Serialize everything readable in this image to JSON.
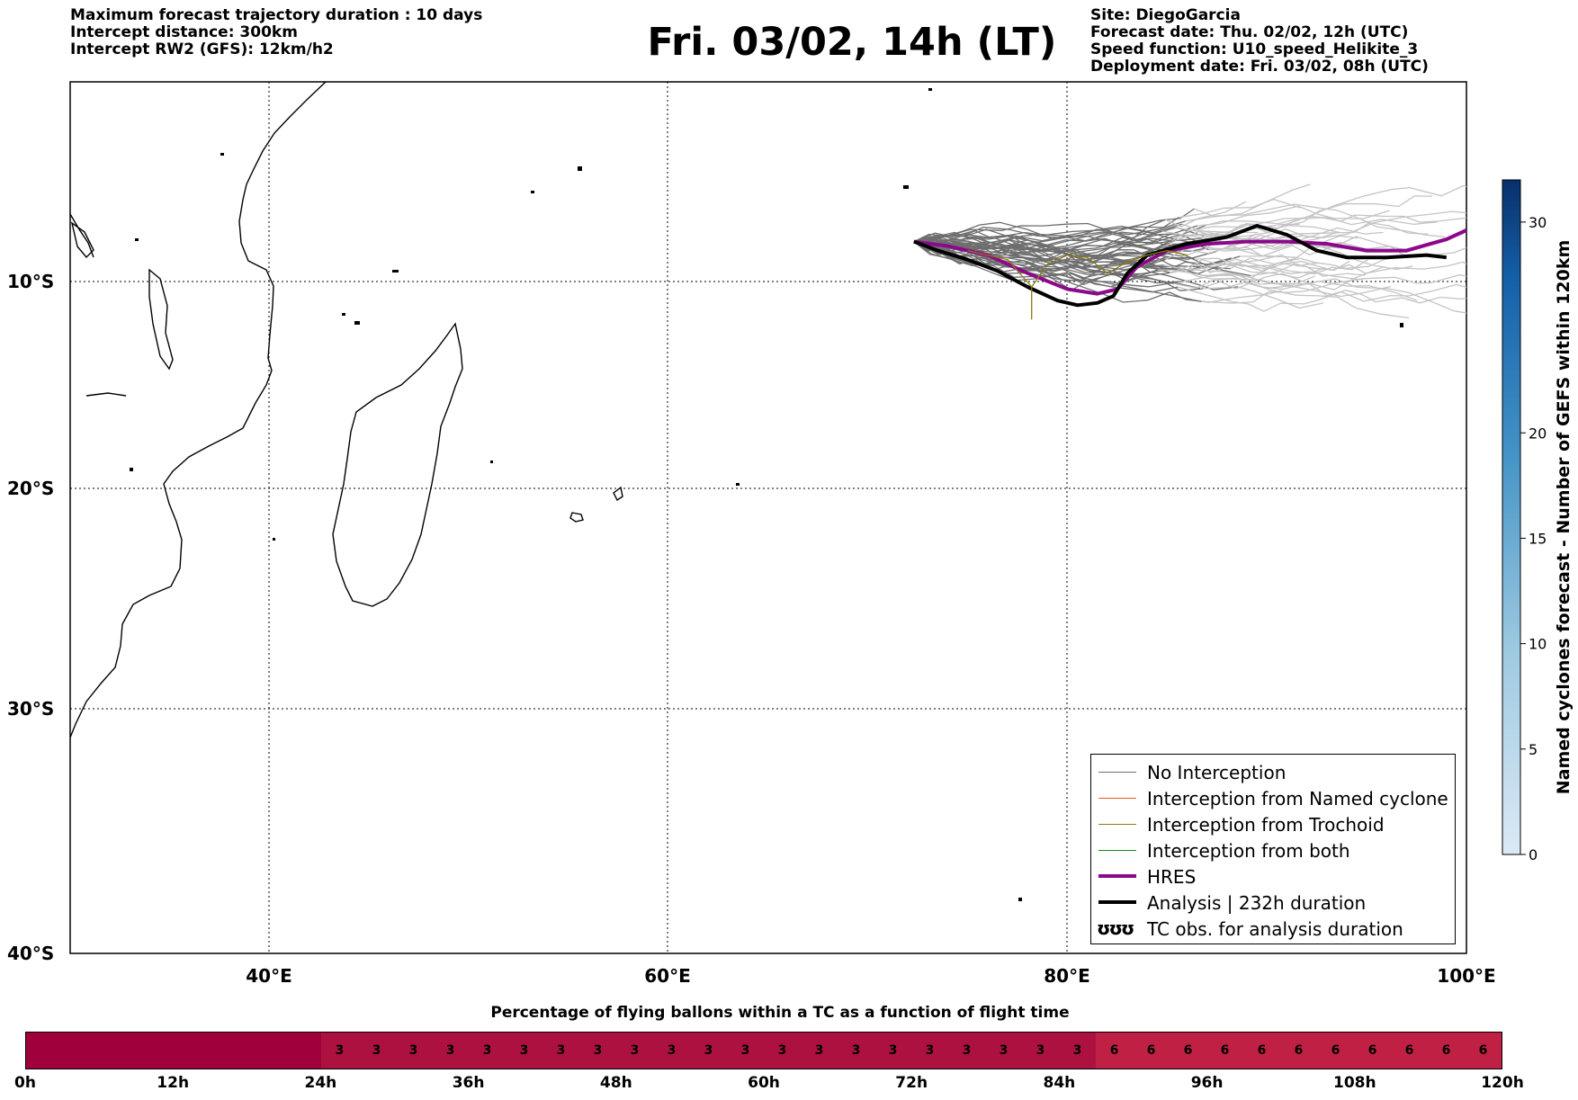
{
  "header": {
    "left_lines": [
      "Maximum forecast trajectory duration : 10 days",
      "Intercept distance: 300km",
      "Intercept RW2 (GFS):  12km/h2"
    ],
    "title": "Fri. 03/02, 14h (LT)",
    "right_lines": [
      "Site: DiegoGarcia",
      "Forecast date: Thu. 02/02, 12h (UTC)",
      "Speed function: U10_speed_Helikite_3",
      "Deployment date: Fri. 03/02, 08h (UTC)"
    ]
  },
  "map": {
    "lon_range": [
      30,
      100
    ],
    "lat_range": [
      -40,
      0
    ],
    "lat_labels": [
      "10°S",
      "20°S",
      "30°S",
      "40°S"
    ],
    "lon_labels": [
      "40°E",
      "60°E",
      "80°E",
      "100°E"
    ],
    "gridlines": "dotted"
  },
  "colorbar": {
    "title": "Named cyclones forecast - Number of GEFS within 120km",
    "ticks": [
      "0",
      "5",
      "10",
      "15",
      "20",
      "30"
    ],
    "tick_values": [
      0,
      5,
      10,
      15,
      20,
      30
    ],
    "range": [
      0,
      32
    ],
    "color_low": "#dbe9f6",
    "color_high": "#08306b"
  },
  "legend": {
    "items": [
      {
        "label": "No Interception",
        "color": "#707070",
        "style": "thin"
      },
      {
        "label": "Interception from Named cyclone",
        "color": "#e8591d",
        "style": "thin"
      },
      {
        "label": "Interception from Trochoid",
        "color": "#8a7a10",
        "style": "thin"
      },
      {
        "label": "Interception from both",
        "color": "#1a8a1a",
        "style": "thin"
      },
      {
        "label": "HRES",
        "color": "#8b0a8b",
        "style": "thick"
      },
      {
        "label": "Analysis | 232h duration",
        "color": "#000000",
        "style": "thick"
      },
      {
        "label": "TC obs. for analysis duration",
        "glyph": "ʊʊʊ",
        "style": "glyph"
      }
    ]
  },
  "flight_bar": {
    "title": "Percentage of flying ballons within a TC as a function of flight time",
    "cells": [
      "",
      "",
      "",
      "",
      "",
      "",
      "",
      "",
      "3",
      "3",
      "3",
      "3",
      "3",
      "3",
      "3",
      "3",
      "3",
      "3",
      "3",
      "3",
      "3",
      "3",
      "3",
      "3",
      "3",
      "3",
      "3",
      "3",
      "3",
      "6",
      "6",
      "6",
      "6",
      "6",
      "6",
      "6",
      "6",
      "6",
      "6",
      "6"
    ],
    "cell_colors": {
      "": "#a0003c",
      "3": "#ad1140",
      "6": "#c02044"
    },
    "tick_labels": [
      "0h",
      "12h",
      "24h",
      "36h",
      "48h",
      "60h",
      "72h",
      "84h",
      "96h",
      "108h",
      "120h"
    ]
  },
  "chart_data": {
    "type": "line",
    "title": "Fri. 03/02, 14h (LT)",
    "xlabel": "",
    "ylabel": "",
    "xlim": [
      30,
      100
    ],
    "ylim": [
      -40,
      0
    ],
    "series": [
      {
        "name": "HRES",
        "color": "#8b0a8b",
        "x": [
          72.3,
          74,
          76,
          78,
          80,
          81.5,
          82.5,
          83.5,
          85,
          87,
          89,
          91,
          93,
          95,
          97,
          99,
          100
        ],
        "y": [
          -7.2,
          -7.4,
          -7.8,
          -8.6,
          -9.3,
          -9.5,
          -9.3,
          -8.3,
          -7.6,
          -7.3,
          -7.2,
          -7.2,
          -7.3,
          -7.6,
          -7.6,
          -7.1,
          -6.7
        ]
      },
      {
        "name": "Analysis | 232h duration",
        "color": "#000000",
        "x": [
          72.3,
          73.5,
          75,
          76.5,
          78,
          79.5,
          80.5,
          81.5,
          82.3,
          83,
          84,
          86,
          88,
          89.5,
          91,
          92.5,
          94,
          96,
          98,
          99
        ],
        "y": [
          -7.2,
          -7.6,
          -8.0,
          -8.5,
          -9.2,
          -9.8,
          -10.0,
          -9.9,
          -9.6,
          -8.6,
          -7.8,
          -7.3,
          -7.0,
          -6.5,
          -6.9,
          -7.6,
          -7.9,
          -7.9,
          -7.8,
          -7.9
        ]
      },
      {
        "name": "Interception from Trochoid",
        "color": "#8a7a10",
        "x": [
          75,
          77,
          78.2,
          78.2,
          78.2,
          79,
          80,
          81,
          82,
          83,
          84,
          85,
          86
        ],
        "y": [
          -7.6,
          -8.0,
          -9.2,
          -10.6,
          -9.2,
          -8.2,
          -7.8,
          -7.9,
          -8.6,
          -8.1,
          -7.8,
          -7.6,
          -7.8
        ]
      }
    ]
  }
}
